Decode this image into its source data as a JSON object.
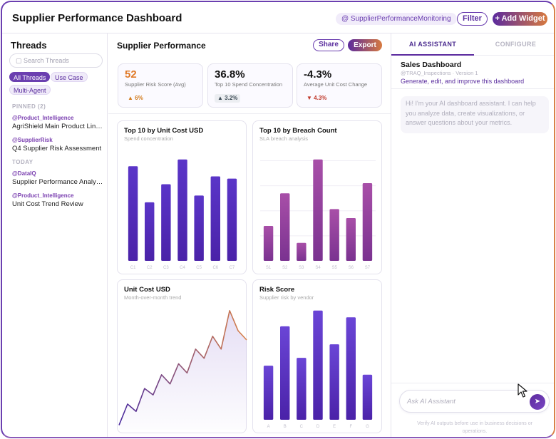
{
  "header": {
    "title": "Supplier Performance Dashboard",
    "mention": "@ SupplierPerformanceMonitoring",
    "filter_label": "Filter",
    "add_widget_label": "+ Add Widget"
  },
  "sidebar": {
    "title": "Threads",
    "search_placeholder": "Search Threads",
    "filters": [
      "All Threads",
      "Use Case",
      "Multi-Agent"
    ],
    "pinned_label": "PINNED (2)",
    "today_label": "TODAY",
    "pinned": [
      {
        "handle": "@Product_Intelligence",
        "name": "AgriShield Main Product Line..."
      },
      {
        "handle": "@SupplierRisk",
        "name": "Q4 Supplier Risk Assessment"
      }
    ],
    "today": [
      {
        "handle": "@DataIQ",
        "name": "Supplier Performance Analysis"
      },
      {
        "handle": "@Product_Intelligence",
        "name": "Unit Cost Trend Review"
      }
    ]
  },
  "main": {
    "title": "Supplier Performance",
    "share_label": "Share",
    "export_label": "Export",
    "kpis": [
      {
        "value": "52",
        "label": "Supplier Risk Score (Avg)",
        "delta": "▲ 6%"
      },
      {
        "value": "36.8%",
        "label": "Top 10 Spend Concentration",
        "delta": "▲ 3.2%"
      },
      {
        "value": "-4.3%",
        "label": "Average Unit Cost Change",
        "delta": "▼ 4.3%"
      }
    ]
  },
  "chart_data": [
    {
      "type": "bar",
      "title": "Top 10 by Unit Cost USD",
      "subtitle": "Spend concentration",
      "categories": [
        "C1",
        "C2",
        "C3",
        "C4",
        "C5",
        "C6",
        "C7"
      ],
      "values": [
        84,
        52,
        68,
        90,
        58,
        75,
        73
      ],
      "ylim": [
        0,
        100
      ],
      "grid": false,
      "colors": [
        "#5a35c8",
        "#4a22a8"
      ]
    },
    {
      "type": "bar",
      "title": "Top 10 by Breach Count",
      "subtitle": "SLA breach analysis",
      "categories": [
        "S1",
        "S2",
        "S3",
        "S4",
        "S5",
        "S6",
        "S7"
      ],
      "values": [
        31,
        60,
        16,
        90,
        46,
        38,
        69
      ],
      "ylim": [
        0,
        100
      ],
      "grid": true,
      "colors": [
        "#a84fa8",
        "#7a3290"
      ]
    },
    {
      "type": "area",
      "title": "Unit Cost USD",
      "subtitle": "Month-over-month trend",
      "x": [
        1,
        2,
        3,
        4,
        5,
        6,
        7,
        8,
        9,
        10,
        11,
        12,
        13,
        14,
        15,
        16
      ],
      "values": [
        5,
        28,
        20,
        45,
        38,
        60,
        50,
        72,
        62,
        88,
        78,
        102,
        88,
        130,
        108,
        98
      ],
      "ylim": [
        0,
        140
      ],
      "colors": [
        "#4a2a9e",
        "#d9824a"
      ]
    },
    {
      "type": "bar",
      "title": "Risk Score",
      "subtitle": "Supplier risk by vendor",
      "categories": [
        "A",
        "B",
        "C",
        "D",
        "E",
        "F",
        "G"
      ],
      "values": [
        48,
        83,
        55,
        97,
        67,
        91,
        40
      ],
      "ylim": [
        0,
        100
      ],
      "grid": false,
      "colors": [
        "#6a45d6",
        "#4a22a8"
      ]
    }
  ],
  "ai": {
    "tab_assistant": "AI ASSISTANT",
    "tab_configure": "CONFIGURE",
    "dashboard_title": "Sales Dashboard",
    "dashboard_meta": "@TRAQ_Inspections · Version 1",
    "dashboard_desc": "Generate, edit, and improve this dashboard",
    "greeting": "Hi! I'm your AI dashboard assistant. I can help you analyze data, create visualizations, or answer questions about your metrics.",
    "input_placeholder": "Ask AI Assistant",
    "disclaimer": "Verify AI outputs before use in business decisions or operations."
  }
}
